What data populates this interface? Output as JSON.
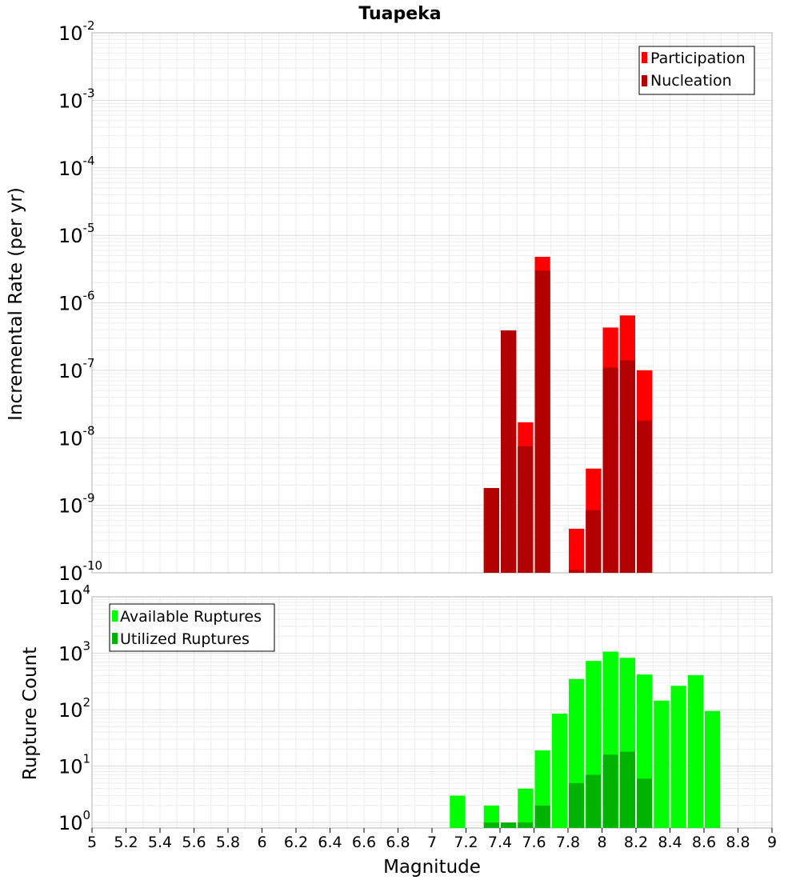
{
  "chart_data": [
    {
      "type": "bar",
      "title": "Tuapeka",
      "xlabel": "",
      "ylabel": "Incremental Rate (per yr)",
      "yscale": "log",
      "ylim": [
        1e-10,
        0.01
      ],
      "xlim": [
        5,
        9
      ],
      "grid": true,
      "legend_position": "top-right",
      "y_tick_labels": [
        {
          "base": "10",
          "exp": "-10"
        },
        {
          "base": "10",
          "exp": "-9"
        },
        {
          "base": "10",
          "exp": "-8"
        },
        {
          "base": "10",
          "exp": "-7"
        },
        {
          "base": "10",
          "exp": "-6"
        },
        {
          "base": "10",
          "exp": "-5"
        },
        {
          "base": "10",
          "exp": "-4"
        },
        {
          "base": "10",
          "exp": "-3"
        },
        {
          "base": "10",
          "exp": "-2"
        }
      ],
      "series": [
        {
          "name": "Participation",
          "color": "#ff0000",
          "x": [
            7.35,
            7.45,
            7.55,
            7.65,
            7.85,
            7.95,
            8.05,
            8.15,
            8.25
          ],
          "values": [
            1.8e-09,
            3.9e-07,
            1.7e-08,
            4.8e-06,
            4.5e-10,
            3.5e-09,
            4.3e-07,
            6.5e-07,
            1e-07
          ]
        },
        {
          "name": "Nucleation",
          "color": "#b30000",
          "x": [
            7.35,
            7.45,
            7.55,
            7.65,
            7.85,
            7.95,
            8.05,
            8.15,
            8.25
          ],
          "values": [
            1.8e-09,
            3.9e-07,
            7.5e-09,
            3e-06,
            1.1e-10,
            8.5e-10,
            1.1e-07,
            1.4e-07,
            1.8e-08
          ]
        }
      ]
    },
    {
      "type": "bar",
      "title": "",
      "xlabel": "Magnitude",
      "ylabel": "Rupture Count",
      "yscale": "log",
      "ylim": [
        0.8,
        10000
      ],
      "xlim": [
        5,
        9
      ],
      "grid": true,
      "legend_position": "top-left",
      "x_ticks": [
        "5",
        "5.2",
        "5.4",
        "5.6",
        "5.8",
        "6",
        "6.2",
        "6.4",
        "6.6",
        "6.8",
        "7",
        "7.2",
        "7.4",
        "7.6",
        "7.8",
        "8",
        "8.2",
        "8.4",
        "8.6",
        "8.8",
        "9"
      ],
      "y_tick_labels": [
        {
          "base": "10",
          "exp": "0"
        },
        {
          "base": "10",
          "exp": "1"
        },
        {
          "base": "10",
          "exp": "2"
        },
        {
          "base": "10",
          "exp": "3"
        },
        {
          "base": "10",
          "exp": "4"
        }
      ],
      "series": [
        {
          "name": "Available Ruptures",
          "color": "#00ff00",
          "x": [
            7.15,
            7.35,
            7.55,
            7.65,
            7.75,
            7.85,
            7.95,
            8.05,
            8.15,
            8.25,
            8.35,
            8.45,
            8.55,
            8.65
          ],
          "values": [
            3,
            2,
            4,
            19,
            85,
            350,
            730,
            1070,
            830,
            420,
            145,
            265,
            410,
            95
          ]
        },
        {
          "name": "Utilized Ruptures",
          "color": "#00b300",
          "x": [
            7.35,
            7.45,
            7.55,
            7.65,
            7.85,
            7.95,
            8.05,
            8.15,
            8.25
          ],
          "values": [
            1,
            1,
            1,
            2,
            5,
            7,
            16,
            18,
            6
          ]
        }
      ]
    }
  ]
}
